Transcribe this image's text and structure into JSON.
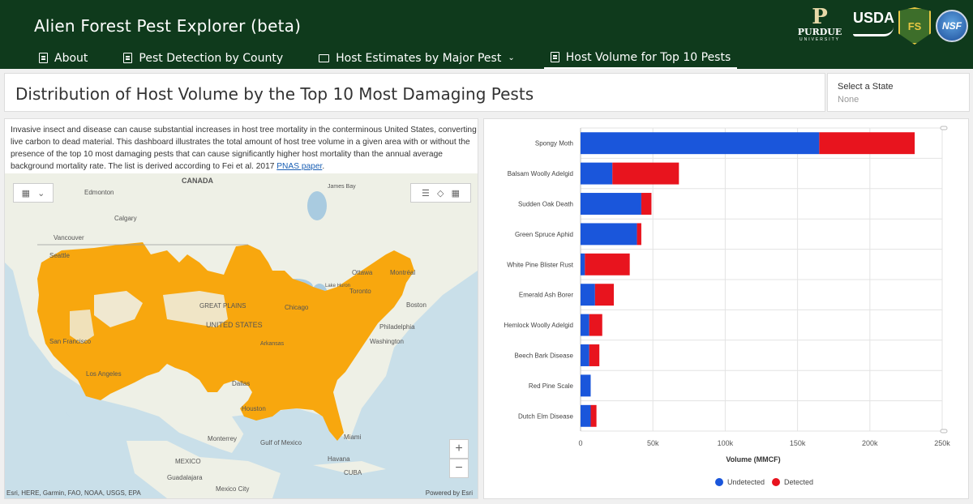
{
  "header": {
    "title": "Alien Forest Pest Explorer (beta)",
    "logos": {
      "purdue": "PURDUE",
      "purdue_sub": "UNIVERSITY",
      "usda": "USDA",
      "fs": "FS",
      "nsf": "NSF"
    }
  },
  "nav": {
    "items": [
      {
        "label": "About",
        "icon": "document-icon"
      },
      {
        "label": "Pest Detection by County",
        "icon": "document-icon"
      },
      {
        "label": "Host Estimates by Major Pest",
        "icon": "folder-icon"
      },
      {
        "label": "Host Volume for Top 10 Pests",
        "icon": "document-icon"
      }
    ]
  },
  "title_panel": {
    "title": "Distribution of Host Volume by the Top 10 Most Damaging Pests"
  },
  "state_selector": {
    "label": "Select a State",
    "value": "None"
  },
  "description": {
    "text": "Invasive insect and disease can cause substantial increases in host tree mortality in the conterminous United States, converting live carbon to dead material. This dashboard illustrates the total amount of host tree volume in a given area with or without the presence of the top 10 most damaging pests that can cause significantly higher host mortality than the annual average background mortality rate.  The list is derived according to Fei et al. 2017 ",
    "link": "PNAS paper",
    "tail": "."
  },
  "map": {
    "labels": [
      "CANADA",
      "Edmonton",
      "Calgary",
      "Vancouver",
      "Seattle",
      "James Bay",
      "Ottawa",
      "Montréal",
      "Toronto",
      "Boston",
      "Chicago",
      "Lake Huron",
      "GREAT PLAINS",
      "UNITED STATES",
      "Philadelphia",
      "Washington",
      "San Francisco",
      "Los Angeles",
      "Arkansas",
      "Dallas",
      "Houston",
      "Monterrey",
      "Gulf of Mexico",
      "Miami",
      "Havana",
      "CUBA",
      "MEXICO",
      "Guadalajara",
      "Mexico City"
    ],
    "attribution": "Esri, HERE, Garmin, FAO, NOAA, USGS, EPA",
    "powered": "Powered by Esri",
    "zoom_in": "+",
    "zoom_out": "−"
  },
  "chart_data": {
    "type": "bar",
    "orientation": "horizontal",
    "stacked": true,
    "categories": [
      "Spongy Moth",
      "Balsam Woolly Adelgid",
      "Sudden Oak Death",
      "Green Spruce Aphid",
      "White Pine Blister Rust",
      "Emerald Ash Borer",
      "Hemlock Woolly Adelgid",
      "Beech Bark Disease",
      "Red Pine Scale",
      "Dutch Elm Disease"
    ],
    "series": [
      {
        "name": "Undetected",
        "color": "#1a56db",
        "values": [
          165000,
          22000,
          42000,
          39000,
          3000,
          10000,
          6000,
          6000,
          7000,
          7000
        ]
      },
      {
        "name": "Detected",
        "color": "#e8141e",
        "values": [
          66000,
          46000,
          7000,
          3000,
          31000,
          13000,
          9000,
          7000,
          0,
          4000
        ]
      }
    ],
    "xlabel": "Volume (MMCF)",
    "xlim": [
      0,
      250000
    ],
    "xticks": [
      "0",
      "50k",
      "100k",
      "150k",
      "200k",
      "250k"
    ],
    "grid": true,
    "legend_position": "bottom"
  }
}
